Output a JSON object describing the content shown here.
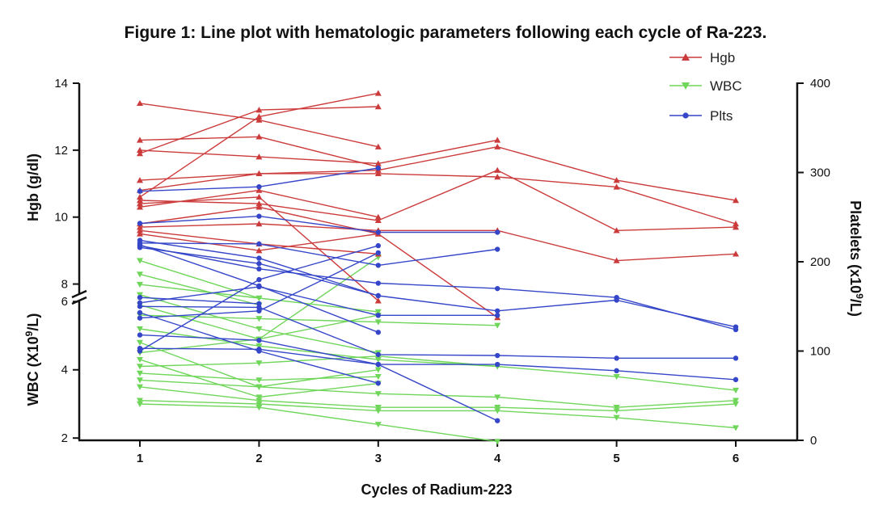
{
  "chart_data": {
    "type": "line",
    "title": "Figure 1: Line plot with hematologic parameters following each cycle of Ra-223.",
    "xlabel": "Cycles of Radium-223",
    "x_ticks": [
      "1",
      "2",
      "3",
      "4",
      "5",
      "6"
    ],
    "left_axis_upper": {
      "label": "Hgb (g/dl)",
      "range": [
        7,
        14
      ],
      "ticks": [
        "8",
        "10",
        "12",
        "14"
      ]
    },
    "left_axis_lower": {
      "label_main": "WBC (X10",
      "label_sup": "9",
      "label_end": "/L)",
      "range": [
        1.2,
        7
      ],
      "ticks": [
        "2",
        "4",
        "6"
      ]
    },
    "right_axis": {
      "label_main": "Platelets (x10",
      "label_sup": "9",
      "label_end": "/L)",
      "range": [
        0,
        400
      ],
      "ticks": [
        "0",
        "100",
        "200",
        "300",
        "400"
      ]
    },
    "legend": [
      "Hgb",
      "WBC",
      "Plts"
    ],
    "colors": {
      "Hgb": "#cc3b3b",
      "WBC": "#6fd65a",
      "Plts": "#3546c9"
    },
    "series": [
      {
        "group": "Hgb",
        "x": [
          1,
          2,
          3
        ],
        "y": [
          13.4,
          12.9,
          12.1
        ]
      },
      {
        "group": "Hgb",
        "x": [
          1,
          2,
          3
        ],
        "y": [
          12.3,
          12.4,
          11.5
        ]
      },
      {
        "group": "Hgb",
        "x": [
          1,
          2,
          3,
          4
        ],
        "y": [
          12.0,
          11.8,
          11.6,
          12.3
        ]
      },
      {
        "group": "Hgb",
        "x": [
          1,
          2,
          3
        ],
        "y": [
          11.9,
          13.2,
          13.3
        ]
      },
      {
        "group": "Hgb",
        "x": [
          1,
          2,
          3
        ],
        "y": [
          10.6,
          13.0,
          13.7
        ]
      },
      {
        "group": "Hgb",
        "x": [
          1,
          2,
          3,
          4,
          5,
          6
        ],
        "y": [
          11.1,
          11.3,
          11.4,
          12.1,
          11.1,
          10.5
        ]
      },
      {
        "group": "Hgb",
        "x": [
          1,
          2,
          3,
          4,
          5,
          6
        ],
        "y": [
          10.8,
          11.3,
          11.3,
          11.2,
          10.9,
          9.8
        ]
      },
      {
        "group": "Hgb",
        "x": [
          1,
          2,
          3,
          4,
          5,
          6
        ],
        "y": [
          10.5,
          10.4,
          9.9,
          11.4,
          9.6,
          9.7
        ]
      },
      {
        "group": "Hgb",
        "x": [
          1,
          2,
          3
        ],
        "y": [
          10.3,
          10.8,
          10.0
        ]
      },
      {
        "group": "Hgb",
        "x": [
          1,
          2,
          3,
          4,
          5,
          6
        ],
        "y": [
          9.7,
          9.8,
          9.6,
          9.6,
          8.7,
          8.9
        ]
      },
      {
        "group": "Hgb",
        "x": [
          1,
          2,
          3
        ],
        "y": [
          9.6,
          9.2,
          8.9
        ]
      },
      {
        "group": "Hgb",
        "x": [
          1,
          2,
          3,
          4
        ],
        "y": [
          9.8,
          10.3,
          9.5,
          7.0
        ]
      },
      {
        "group": "Hgb",
        "x": [
          1,
          2,
          3
        ],
        "y": [
          9.5,
          9.0,
          9.5
        ]
      },
      {
        "group": "Hgb",
        "x": [
          1,
          2,
          3
        ],
        "y": [
          10.4,
          10.6,
          7.5
        ]
      },
      {
        "group": "WBC",
        "x": [
          1,
          2,
          3
        ],
        "y": [
          6.5,
          6.1,
          5.7
        ]
      },
      {
        "group": "WBC",
        "x": [
          1,
          2,
          3
        ],
        "y": [
          6.2,
          5.2,
          4.5
        ]
      },
      {
        "group": "WBC",
        "x": [
          1,
          2,
          3
        ],
        "y": [
          5.9,
          4.9,
          7.3
        ]
      },
      {
        "group": "WBC",
        "x": [
          1,
          2,
          3,
          4
        ],
        "y": [
          5.6,
          5.5,
          5.4,
          5.3
        ]
      },
      {
        "group": "WBC",
        "x": [
          1,
          2,
          3,
          4
        ],
        "y": [
          5.2,
          4.7,
          4.3,
          4.1
        ]
      },
      {
        "group": "WBC",
        "x": [
          1,
          2,
          3
        ],
        "y": [
          4.8,
          3.5,
          4.0
        ]
      },
      {
        "group": "WBC",
        "x": [
          1,
          2,
          3
        ],
        "y": [
          4.5,
          4.9,
          5.6
        ]
      },
      {
        "group": "WBC",
        "x": [
          1,
          2,
          3
        ],
        "y": [
          4.3,
          3.2,
          3.6
        ]
      },
      {
        "group": "WBC",
        "x": [
          1,
          2,
          3,
          4,
          5,
          6
        ],
        "y": [
          4.1,
          4.2,
          4.4,
          4.1,
          3.8,
          3.4
        ]
      },
      {
        "group": "WBC",
        "x": [
          1,
          2,
          3
        ],
        "y": [
          3.9,
          3.7,
          3.8
        ]
      },
      {
        "group": "WBC",
        "x": [
          1,
          2,
          3,
          4,
          5,
          6
        ],
        "y": [
          3.7,
          3.5,
          3.3,
          3.2,
          2.9,
          3.1
        ]
      },
      {
        "group": "WBC",
        "x": [
          1,
          2,
          3,
          4,
          5,
          6
        ],
        "y": [
          3.5,
          3.1,
          2.9,
          2.9,
          2.8,
          3.0
        ]
      },
      {
        "group": "WBC",
        "x": [
          1,
          2,
          3,
          4,
          5,
          6
        ],
        "y": [
          3.1,
          3.0,
          2.8,
          2.8,
          2.6,
          2.3
        ]
      },
      {
        "group": "WBC",
        "x": [
          1,
          2,
          3,
          4
        ],
        "y": [
          3.0,
          2.9,
          2.4,
          1.9
        ]
      },
      {
        "group": "WBC",
        "x": [
          1,
          2
        ],
        "y": [
          7.2,
          6.1
        ]
      },
      {
        "group": "WBC",
        "x": [
          1,
          2
        ],
        "y": [
          6.8,
          5.9
        ]
      },
      {
        "group": "Plts",
        "x": [
          1,
          2,
          3
        ],
        "y": [
          279,
          284,
          305
        ]
      },
      {
        "group": "Plts",
        "x": [
          1,
          2,
          3,
          4
        ],
        "y": [
          243,
          251,
          233,
          233
        ]
      },
      {
        "group": "Plts",
        "x": [
          1,
          2,
          3,
          4
        ],
        "y": [
          221,
          220,
          196,
          214
        ]
      },
      {
        "group": "Plts",
        "x": [
          1,
          2,
          3,
          4,
          5,
          6
        ],
        "y": [
          218,
          192,
          176,
          170,
          160,
          124
        ]
      },
      {
        "group": "Plts",
        "x": [
          1,
          2,
          3,
          4,
          5,
          6
        ],
        "y": [
          216,
          198,
          162,
          145,
          157,
          127
        ]
      },
      {
        "group": "Plts",
        "x": [
          1,
          2,
          3
        ],
        "y": [
          224,
          204,
          162
        ]
      },
      {
        "group": "Plts",
        "x": [
          1,
          2,
          3
        ],
        "y": [
          219,
          173,
          121
        ]
      },
      {
        "group": "Plts",
        "x": [
          1,
          2,
          3,
          4
        ],
        "y": [
          154,
          172,
          140,
          140
        ]
      },
      {
        "group": "Plts",
        "x": [
          1,
          2,
          3,
          4,
          5,
          6
        ],
        "y": [
          150,
          149,
          96,
          95,
          92,
          92
        ]
      },
      {
        "group": "Plts",
        "x": [
          1,
          2,
          3
        ],
        "y": [
          137,
          145,
          210
        ]
      },
      {
        "group": "Plts",
        "x": [
          1,
          2,
          3
        ],
        "y": [
          100,
          180,
          218
        ]
      },
      {
        "group": "Plts",
        "x": [
          1,
          2,
          3,
          4
        ],
        "y": [
          118,
          112,
          85,
          22
        ]
      },
      {
        "group": "Plts",
        "x": [
          1,
          2,
          3,
          4,
          5,
          6
        ],
        "y": [
          103,
          102,
          85,
          85,
          78,
          68
        ]
      },
      {
        "group": "Plts",
        "x": [
          1,
          2,
          3
        ],
        "y": [
          143,
          100,
          64
        ]
      },
      {
        "group": "Plts",
        "x": [
          1,
          2
        ],
        "y": [
          160,
          153
        ]
      }
    ]
  }
}
